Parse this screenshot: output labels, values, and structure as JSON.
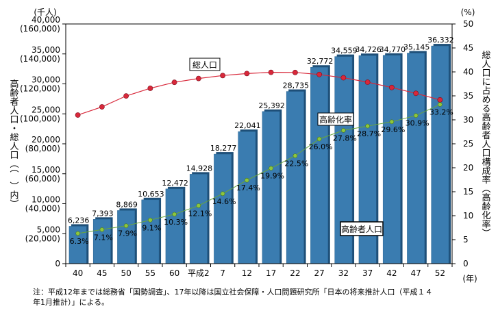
{
  "chart_data": {
    "type": "bar",
    "categories": [
      "40",
      "45",
      "50",
      "55",
      "60",
      "平成2",
      "7",
      "12",
      "17",
      "22",
      "27",
      "32",
      "37",
      "42",
      "47",
      "52"
    ],
    "x_unit": "(年)",
    "series": [
      {
        "name": "高齢者人口",
        "type": "bar",
        "axis": "left",
        "values": [
          6236,
          7393,
          8869,
          10653,
          12472,
          14928,
          18277,
          22041,
          25392,
          28735,
          32772,
          34559,
          34726,
          34770,
          35145,
          36332
        ],
        "labels": [
          "6,236",
          "7,393",
          "8,869",
          "10,653",
          "12,472",
          "14,928",
          "18,277",
          "22,041",
          "25,392",
          "28,735",
          "32,772",
          "34,559",
          "34,726",
          "34,770",
          "35,145",
          "36,332"
        ],
        "color": "#3a7cb0"
      },
      {
        "name": "総人口",
        "type": "line",
        "axis": "left_paren",
        "values": [
          99209,
          104665,
          111940,
          117060,
          121049,
          123611,
          125570,
          126926,
          127708,
          127623,
          126266,
          124100,
          121136,
          117580,
          113692,
          109338
        ],
        "color": "#d8283a"
      },
      {
        "name": "高齢化率",
        "type": "line",
        "axis": "right",
        "values": [
          6.3,
          7.1,
          7.9,
          9.1,
          10.3,
          12.1,
          14.6,
          17.4,
          19.9,
          22.5,
          26.0,
          27.8,
          28.7,
          29.6,
          30.9,
          33.2
        ],
        "labels": [
          "6.3%",
          "7.1%",
          "7.9%",
          "9.1%",
          "10.3%",
          "12.1%",
          "14.6%",
          "17.4%",
          "19.9%",
          "22.5%",
          "26.0%",
          "27.8%",
          "28.7%",
          "29.6%",
          "30.9%",
          "33.2%"
        ],
        "color": "#8dc63f"
      }
    ],
    "left_axis": {
      "unit": "(千人)",
      "ylim": [
        0,
        40000
      ],
      "ticks": [
        0,
        5000,
        10000,
        15000,
        20000,
        25000,
        30000,
        35000,
        40000
      ],
      "tick_labels": [
        "0",
        "5,000",
        "10,000",
        "15,000",
        "20,000",
        "25,000",
        "30,000",
        "35,000",
        "40,000"
      ],
      "paren_labels": [
        "",
        "(20,000)",
        "(40,000)",
        "(60,000)",
        "(80,000)",
        "(100,000)",
        "(120,000)",
        "(140,000)",
        "(160,000)"
      ],
      "paren_ylim": [
        0,
        160000
      ],
      "ylabel": "高齢者人口・総人口（（　）内）"
    },
    "right_axis": {
      "unit": "(%)",
      "ylim": [
        0,
        50
      ],
      "ticks": [
        0,
        5,
        10,
        15,
        20,
        25,
        30,
        35,
        40,
        45,
        50
      ],
      "tick_labels": [
        "0",
        "5",
        "10",
        "15",
        "20",
        "25",
        "30",
        "35",
        "40",
        "45",
        "50"
      ],
      "ylabel": "総人口に占める高齢者人口構成率（高齢化率）"
    },
    "annotations": {
      "total_population": "総人口",
      "aging_rate": "高齢化率",
      "elderly_population": "高齢者人口"
    },
    "note": "注：平成12年までは総務省「国勢調査」、17年以降は国立社会保障・人口問題研究所「日本の将来推計人口（平成１４\n年1月推計）」による。"
  }
}
